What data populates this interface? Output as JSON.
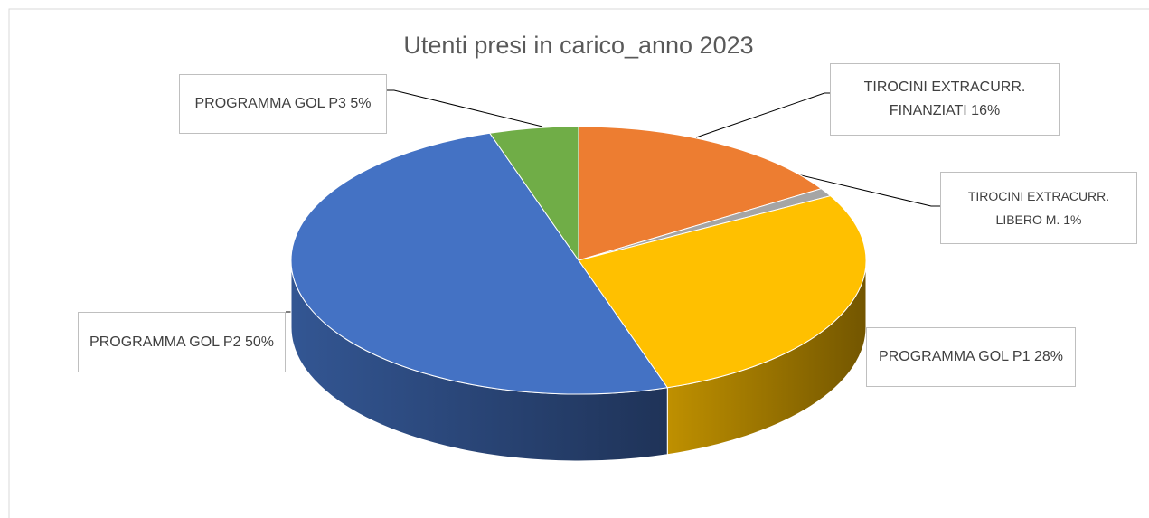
{
  "chart_data": {
    "type": "pie3d",
    "title": "Utenti presi in carico_anno 2023",
    "categories": [
      "TIROCINI EXTRACURR. FINANZIATI",
      "TIROCINI EXTRACURR. LIBERO M.",
      "PROGRAMMA GOL P1",
      "PROGRAMMA GOL P2",
      "PROGRAMMA GOL P3"
    ],
    "values": [
      16,
      1,
      28,
      50,
      5
    ],
    "value_labels": [
      "16%",
      "1%",
      "28%",
      "50%",
      "5%"
    ],
    "colors": [
      "#ed7d31",
      "#a5a5a5",
      "#ffc000",
      "#4472c4",
      "#70ad47"
    ]
  }
}
